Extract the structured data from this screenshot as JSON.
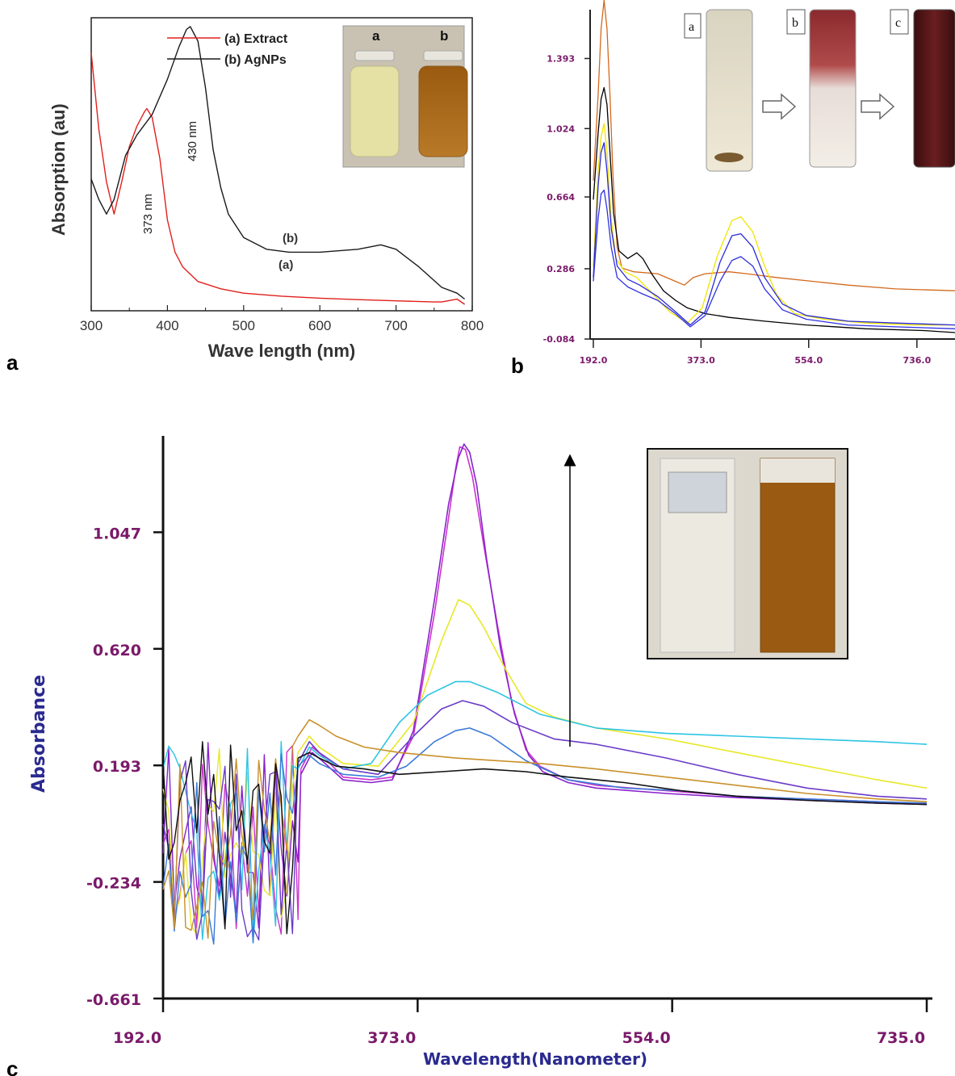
{
  "panels": {
    "a": {
      "letter": "a"
    },
    "b": {
      "letter": "b"
    },
    "c": {
      "letter": "c"
    }
  },
  "chart_data": [
    {
      "id": "a",
      "type": "line",
      "xlabel": "Wave length (nm)",
      "ylabel": "Absorption (au)",
      "xlim": [
        300,
        800
      ],
      "ylim": [
        0,
        1
      ],
      "x_ticks": [
        "300",
        "400",
        "500",
        "600",
        "700",
        "800"
      ],
      "legend": {
        "placement": "top-left",
        "entries": [
          "(a) Extract",
          "(b) AgNPs"
        ]
      },
      "annotations": [
        "373 nm",
        "430 nm",
        "(b)",
        "(a)"
      ],
      "inset_labels": [
        "a",
        "b"
      ],
      "series": [
        {
          "name": "(a) Extract",
          "color": "#e0201c",
          "x": [
            300,
            310,
            320,
            330,
            340,
            350,
            360,
            370,
            373,
            380,
            390,
            400,
            410,
            420,
            440,
            470,
            500,
            550,
            600,
            650,
            700,
            750,
            760,
            770,
            780,
            790
          ],
          "y": [
            0.88,
            0.62,
            0.44,
            0.33,
            0.44,
            0.56,
            0.63,
            0.68,
            0.69,
            0.66,
            0.52,
            0.31,
            0.2,
            0.15,
            0.1,
            0.075,
            0.06,
            0.05,
            0.043,
            0.038,
            0.034,
            0.03,
            0.03,
            0.035,
            0.04,
            0.022
          ]
        },
        {
          "name": "(b) AgNPs",
          "color": "#1a1a1a",
          "x": [
            300,
            310,
            320,
            330,
            345,
            360,
            380,
            400,
            415,
            425,
            430,
            440,
            450,
            460,
            470,
            480,
            500,
            530,
            560,
            600,
            650,
            680,
            700,
            730,
            760,
            780,
            790
          ],
          "y": [
            0.45,
            0.38,
            0.33,
            0.38,
            0.53,
            0.6,
            0.67,
            0.79,
            0.9,
            0.96,
            0.97,
            0.92,
            0.76,
            0.55,
            0.42,
            0.33,
            0.25,
            0.21,
            0.2,
            0.2,
            0.21,
            0.225,
            0.21,
            0.15,
            0.08,
            0.06,
            0.04
          ]
        }
      ]
    },
    {
      "id": "b",
      "type": "line",
      "xlim": [
        192,
        800
      ],
      "ylim": [
        -0.084,
        1.65
      ],
      "x_ticks": [
        "192.0",
        "373.0",
        "554.0",
        "736.0"
      ],
      "y_ticks": [
        "-0.084",
        "0.286",
        "0.664",
        "1.024",
        "1.393"
      ],
      "inset_labels": [
        "a",
        "b",
        "c"
      ],
      "series": [
        {
          "color": "#d2691e",
          "x": [
            192,
            200,
            205,
            210,
            215,
            220,
            225,
            232,
            240,
            260,
            300,
            330,
            345,
            360,
            380,
            420,
            450,
            500,
            560,
            620,
            700,
            800
          ],
          "y": [
            0.75,
            1.2,
            1.55,
            1.7,
            1.55,
            1.2,
            0.78,
            0.4,
            0.29,
            0.27,
            0.26,
            0.22,
            0.2,
            0.24,
            0.26,
            0.27,
            0.26,
            0.24,
            0.22,
            0.2,
            0.18,
            0.17
          ]
        },
        {
          "color": "#000000",
          "x": [
            192,
            200,
            205,
            210,
            215,
            220,
            226,
            235,
            250,
            265,
            275,
            290,
            310,
            330,
            350,
            380,
            420,
            480,
            550,
            650,
            750,
            800
          ],
          "y": [
            0.65,
            1.0,
            1.18,
            1.24,
            1.15,
            0.9,
            0.58,
            0.38,
            0.34,
            0.37,
            0.34,
            0.26,
            0.17,
            0.12,
            0.08,
            0.05,
            0.03,
            0.01,
            -0.01,
            -0.03,
            -0.04,
            -0.05
          ]
        },
        {
          "color": "#f2e400",
          "x": [
            192,
            200,
            205,
            210,
            215,
            222,
            230,
            245,
            265,
            290,
            320,
            350,
            375,
            400,
            425,
            440,
            460,
            480,
            500,
            530,
            580,
            650,
            730,
            800
          ],
          "y": [
            0.3,
            0.8,
            0.98,
            1.05,
            0.9,
            0.55,
            0.34,
            0.27,
            0.24,
            0.16,
            0.06,
            0.0,
            0.08,
            0.35,
            0.54,
            0.56,
            0.48,
            0.3,
            0.15,
            0.05,
            0.02,
            0.0,
            -0.01,
            -0.01
          ]
        },
        {
          "color": "#2a2ad8",
          "x": [
            192,
            200,
            205,
            210,
            215,
            222,
            232,
            250,
            270,
            300,
            330,
            355,
            380,
            405,
            425,
            440,
            460,
            480,
            510,
            550,
            620,
            700,
            800
          ],
          "y": [
            0.24,
            0.72,
            0.9,
            0.95,
            0.8,
            0.5,
            0.3,
            0.23,
            0.2,
            0.14,
            0.06,
            -0.01,
            0.06,
            0.32,
            0.46,
            0.47,
            0.4,
            0.24,
            0.1,
            0.04,
            0.01,
            0.0,
            -0.01
          ]
        },
        {
          "color": "#3030e0",
          "x": [
            192,
            200,
            205,
            210,
            215,
            222,
            232,
            250,
            270,
            300,
            330,
            355,
            380,
            405,
            425,
            440,
            460,
            480,
            510,
            550,
            620,
            700,
            800
          ],
          "y": [
            0.22,
            0.55,
            0.68,
            0.7,
            0.6,
            0.4,
            0.24,
            0.19,
            0.16,
            0.12,
            0.05,
            -0.02,
            0.04,
            0.22,
            0.33,
            0.35,
            0.3,
            0.18,
            0.07,
            0.02,
            -0.01,
            -0.02,
            -0.03
          ]
        }
      ]
    },
    {
      "id": "c",
      "type": "line",
      "xlabel": "Wavelength(Nanometer)",
      "ylabel": "Absorbance",
      "xlim": [
        192,
        735
      ],
      "ylim": [
        -0.661,
        1.4
      ],
      "x_ticks": [
        "192.0",
        "373.0",
        "554.0",
        "735.0"
      ],
      "y_ticks": [
        "-0.661",
        "-0.234",
        "0.193",
        "0.620",
        "1.047"
      ],
      "annotations": [
        "arrow: increasing absorbance"
      ],
      "series": [
        {
          "color": "#cc33cc",
          "x": [
            290,
            298,
            305,
            320,
            340,
            355,
            370,
            385,
            395,
            400,
            403,
            407,
            412,
            420,
            430,
            440,
            450,
            460,
            480,
            500,
            550,
            600,
            650,
            700,
            735
          ],
          "y": [
            0.18,
            0.26,
            0.23,
            0.15,
            0.14,
            0.15,
            0.3,
            0.75,
            1.1,
            1.28,
            1.36,
            1.35,
            1.25,
            1.0,
            0.7,
            0.42,
            0.25,
            0.19,
            0.14,
            0.12,
            0.1,
            0.08,
            0.07,
            0.06,
            0.05
          ]
        },
        {
          "color": "#8822cc",
          "x": [
            290,
            298,
            305,
            320,
            340,
            355,
            370,
            385,
            395,
            402,
            406,
            410,
            415,
            422,
            432,
            442,
            452,
            462,
            480,
            500,
            550,
            600,
            650,
            700,
            735
          ],
          "y": [
            0.16,
            0.24,
            0.21,
            0.14,
            0.13,
            0.14,
            0.32,
            0.8,
            1.15,
            1.32,
            1.37,
            1.34,
            1.22,
            0.95,
            0.62,
            0.38,
            0.23,
            0.17,
            0.13,
            0.11,
            0.09,
            0.075,
            0.065,
            0.055,
            0.05
          ]
        },
        {
          "color": "#e8e82a",
          "x": [
            288,
            296,
            303,
            320,
            345,
            370,
            390,
            402,
            410,
            420,
            435,
            450,
            470,
            500,
            550,
            600,
            650,
            700,
            735
          ],
          "y": [
            0.24,
            0.3,
            0.26,
            0.2,
            0.19,
            0.35,
            0.65,
            0.8,
            0.78,
            0.7,
            0.55,
            0.42,
            0.37,
            0.33,
            0.29,
            0.24,
            0.19,
            0.14,
            0.11
          ]
        },
        {
          "color": "#2cc4e4",
          "x": [
            288,
            296,
            303,
            320,
            340,
            360,
            380,
            400,
            410,
            430,
            460,
            500,
            550,
            600,
            650,
            700,
            735
          ],
          "y": [
            0.18,
            0.26,
            0.23,
            0.18,
            0.2,
            0.35,
            0.45,
            0.5,
            0.5,
            0.46,
            0.38,
            0.33,
            0.31,
            0.3,
            0.29,
            0.28,
            0.27
          ]
        },
        {
          "color": "#6a3cc8",
          "x": [
            288,
            296,
            303,
            320,
            345,
            370,
            390,
            405,
            420,
            440,
            470,
            500,
            550,
            600,
            650,
            700,
            735
          ],
          "y": [
            0.2,
            0.28,
            0.24,
            0.18,
            0.16,
            0.3,
            0.4,
            0.43,
            0.41,
            0.35,
            0.29,
            0.27,
            0.22,
            0.16,
            0.11,
            0.08,
            0.07
          ]
        },
        {
          "color": "#3a7ad8",
          "x": [
            288,
            296,
            303,
            320,
            345,
            365,
            385,
            400,
            410,
            425,
            450,
            480,
            520,
            560,
            600,
            650,
            700,
            735
          ],
          "y": [
            0.19,
            0.23,
            0.2,
            0.16,
            0.15,
            0.19,
            0.28,
            0.32,
            0.33,
            0.3,
            0.21,
            0.14,
            0.11,
            0.1,
            0.08,
            0.07,
            0.06,
            0.055
          ]
        },
        {
          "color": "#c9902a",
          "x": [
            288,
            296,
            303,
            315,
            335,
            360,
            380,
            400,
            430,
            460,
            500,
            550,
            600,
            650,
            700,
            735
          ],
          "y": [
            0.3,
            0.36,
            0.34,
            0.3,
            0.26,
            0.24,
            0.23,
            0.22,
            0.21,
            0.2,
            0.18,
            0.15,
            0.12,
            0.09,
            0.07,
            0.06
          ]
        },
        {
          "color": "#111111",
          "x": [
            288,
            296,
            303,
            315,
            335,
            360,
            390,
            420,
            450,
            480,
            520,
            560,
            600,
            650,
            700,
            735
          ],
          "y": [
            0.22,
            0.24,
            0.22,
            0.19,
            0.18,
            0.16,
            0.17,
            0.18,
            0.17,
            0.15,
            0.13,
            0.1,
            0.08,
            0.065,
            0.055,
            0.05
          ]
        }
      ]
    }
  ]
}
